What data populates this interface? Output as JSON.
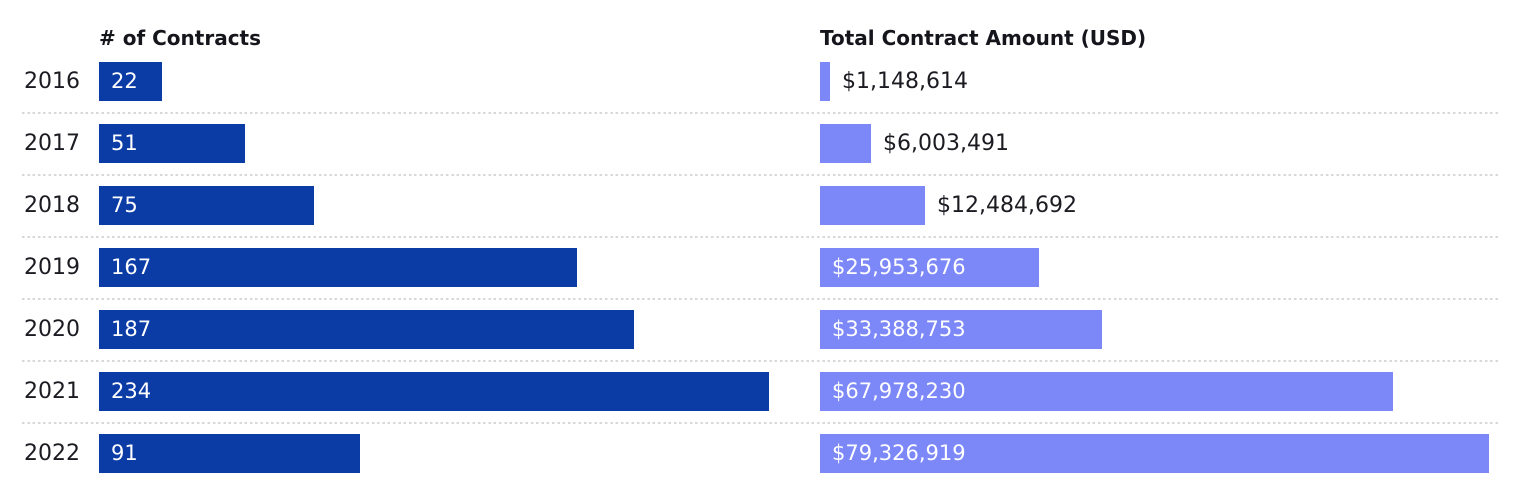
{
  "headers": {
    "left": "# of Contracts",
    "right": "Total Contract Amount (USD)"
  },
  "chart_data": {
    "type": "bar",
    "orientation": "horizontal",
    "categories": [
      "2016",
      "2017",
      "2018",
      "2019",
      "2020",
      "2021",
      "2022"
    ],
    "series": [
      {
        "name": "# of Contracts",
        "values": [
          22,
          51,
          75,
          167,
          187,
          234,
          91
        ],
        "labels": [
          "22",
          "51",
          "75",
          "167",
          "187",
          "234",
          "91"
        ],
        "color": "#0b3ca6",
        "label_placement": "inside",
        "label_color_inside": "#ffffff",
        "axis_max": 234
      },
      {
        "name": "Total Contract Amount (USD)",
        "values": [
          1148614,
          6003491,
          12484692,
          25953676,
          33388753,
          67978230,
          79326919
        ],
        "labels": [
          "$1,148,614",
          "$6,003,491",
          "$12,484,692",
          "$25,953,676",
          "$33,388,753",
          "$67,978,230",
          "$79,326,919"
        ],
        "color": "#7c88f8",
        "label_placement": "auto",
        "label_color_inside": "#ffffff",
        "label_color_outside": "#1b1b22",
        "axis_max": 79326919
      }
    ],
    "grid": "dotted-row-separators",
    "legend_position": "none",
    "separator_color": "#d8d8d8"
  }
}
